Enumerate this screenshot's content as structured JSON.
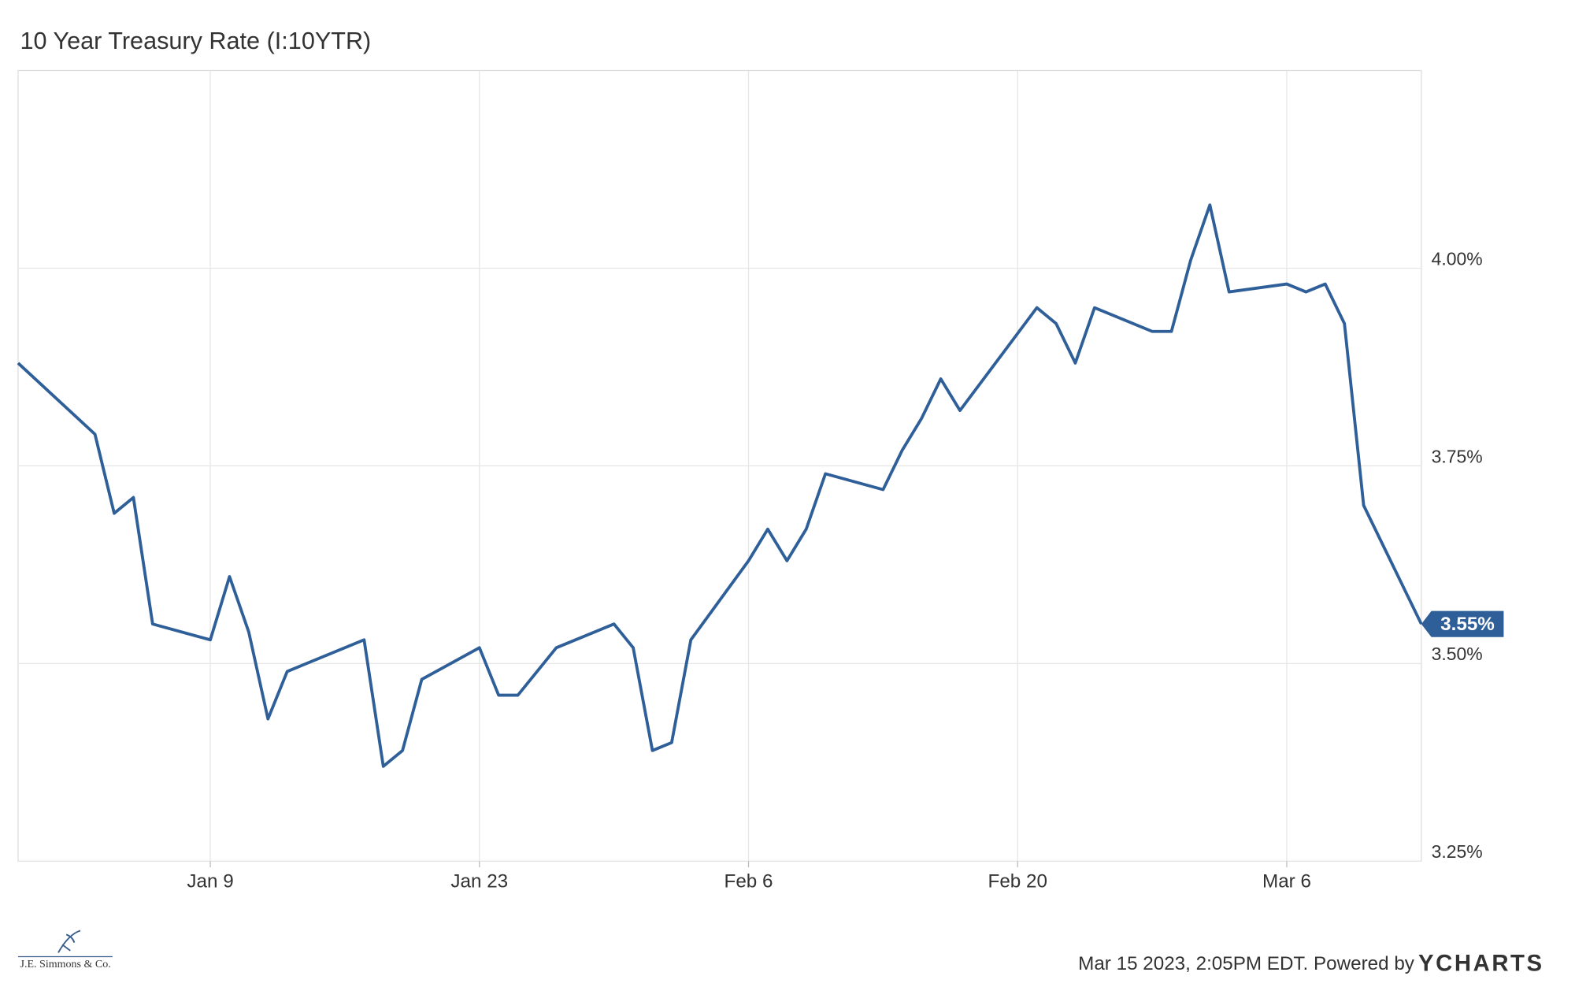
{
  "chart_data": {
    "type": "line",
    "title": "10 Year Treasury Rate (I:10YTR)",
    "x": [
      "Dec 30",
      "Jan 3",
      "Jan 4",
      "Jan 5",
      "Jan 6",
      "Jan 9",
      "Jan 10",
      "Jan 11",
      "Jan 12",
      "Jan 13",
      "Jan 17",
      "Jan 18",
      "Jan 19",
      "Jan 20",
      "Jan 23",
      "Jan 24",
      "Jan 25",
      "Jan 26",
      "Jan 27",
      "Jan 30",
      "Jan 31",
      "Feb 1",
      "Feb 2",
      "Feb 3",
      "Feb 6",
      "Feb 7",
      "Feb 8",
      "Feb 9",
      "Feb 10",
      "Feb 13",
      "Feb 14",
      "Feb 15",
      "Feb 16",
      "Feb 17",
      "Feb 21",
      "Feb 22",
      "Feb 23",
      "Feb 24",
      "Feb 27",
      "Feb 28",
      "Mar 1",
      "Mar 2",
      "Mar 3",
      "Mar 6",
      "Mar 7",
      "Mar 8",
      "Mar 9",
      "Mar 10",
      "Mar 13"
    ],
    "series": [
      {
        "name": "10 Year Treasury Rate",
        "color": "#2f5f98",
        "values": [
          3.88,
          3.79,
          3.69,
          3.71,
          3.55,
          3.53,
          3.61,
          3.54,
          3.43,
          3.49,
          3.53,
          3.37,
          3.39,
          3.48,
          3.52,
          3.46,
          3.46,
          3.49,
          3.52,
          3.55,
          3.52,
          3.39,
          3.4,
          3.53,
          3.63,
          3.67,
          3.63,
          3.67,
          3.74,
          3.72,
          3.77,
          3.81,
          3.86,
          3.82,
          3.95,
          3.93,
          3.88,
          3.95,
          3.92,
          3.92,
          4.01,
          4.08,
          3.97,
          3.98,
          3.97,
          3.98,
          3.93,
          3.7,
          3.55
        ]
      }
    ],
    "annotations": [
      {
        "text": "3.55%",
        "y": 3.55
      }
    ],
    "xlim": [
      "Dec 30",
      "Mar 13"
    ],
    "xticks": [
      "Jan 9",
      "Jan 23",
      "Feb 6",
      "Feb 20",
      "Mar 6"
    ],
    "ylim": [
      3.25,
      4.25
    ],
    "yticks": [
      {
        "value": 3.25,
        "label": "3.25%"
      },
      {
        "value": 3.5,
        "label": "3.50%"
      },
      {
        "value": 3.75,
        "label": "3.75%"
      },
      {
        "value": 4.0,
        "label": "4.00%"
      }
    ],
    "grid": true
  },
  "footer": {
    "timestamp": "Mar 15 2023, 2:05PM EDT. Powered by",
    "brand": "YCHARTS",
    "logo": "J.E. Simmons & Co."
  }
}
